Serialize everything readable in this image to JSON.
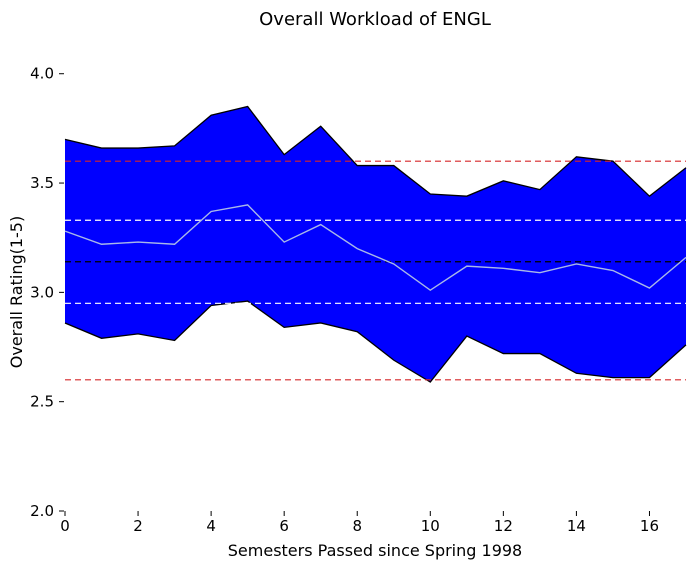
{
  "chart_data": {
    "type": "area",
    "title": "Overall Workload of ENGL",
    "xlabel": "Semesters Passed since Spring 1998",
    "ylabel": "Overall Rating(1-5)",
    "xlim": [
      0,
      17
    ],
    "ylim": [
      2.0,
      4.2
    ],
    "x_ticks": [
      0,
      2,
      4,
      6,
      8,
      10,
      12,
      14,
      16
    ],
    "y_ticks": [
      2.0,
      2.5,
      3.0,
      3.5,
      4.0
    ],
    "x_tick_labels": [
      "0",
      "2",
      "4",
      "6",
      "8",
      "10",
      "12",
      "14",
      "16"
    ],
    "y_tick_labels": [
      "2.0",
      "2.5",
      "3.0",
      "3.5",
      "4.0"
    ],
    "grid": false,
    "x": [
      0,
      1,
      2,
      3,
      4,
      5,
      6,
      7,
      8,
      9,
      10,
      11,
      12,
      13,
      14,
      15,
      16,
      17
    ],
    "series": [
      {
        "role": "upper-bound",
        "values": [
          3.7,
          3.66,
          3.66,
          3.67,
          3.81,
          3.85,
          3.63,
          3.76,
          3.58,
          3.58,
          3.45,
          3.44,
          3.51,
          3.47,
          3.62,
          3.6,
          3.44,
          3.57
        ]
      },
      {
        "role": "lower-bound",
        "values": [
          2.86,
          2.79,
          2.81,
          2.78,
          2.94,
          2.96,
          2.84,
          2.86,
          2.82,
          2.69,
          2.59,
          2.8,
          2.72,
          2.72,
          2.63,
          2.61,
          2.61,
          2.76
        ]
      },
      {
        "role": "mean",
        "values": [
          3.28,
          3.22,
          3.23,
          3.22,
          3.37,
          3.4,
          3.23,
          3.31,
          3.2,
          3.13,
          3.01,
          3.12,
          3.11,
          3.09,
          3.13,
          3.1,
          3.02,
          3.16
        ]
      }
    ],
    "reference_lines": [
      {
        "y": 3.6,
        "color": "#d62728",
        "style": "dashed"
      },
      {
        "y": 3.33,
        "color": "#ffffff",
        "style": "dashed"
      },
      {
        "y": 3.14,
        "color": "#000000",
        "style": "dashed"
      },
      {
        "y": 2.95,
        "color": "#ffffff",
        "style": "dashed"
      },
      {
        "y": 2.6,
        "color": "#d62728",
        "style": "dashed"
      }
    ],
    "colors": {
      "band_fill": "#0000ff",
      "band_edge": "#000000",
      "mean_line": "#a9b8e8"
    }
  }
}
